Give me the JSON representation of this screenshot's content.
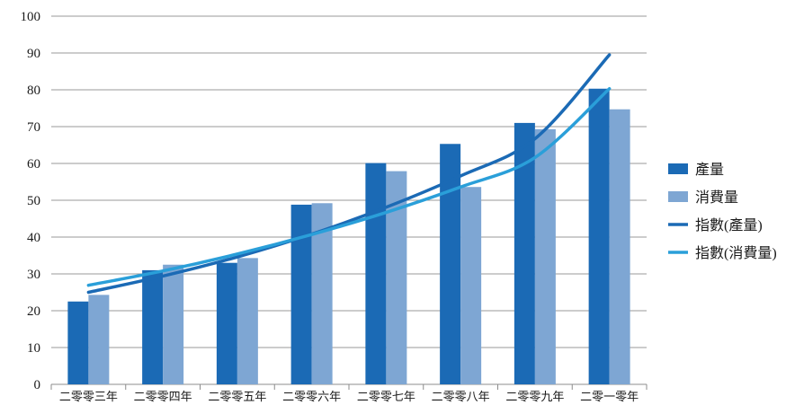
{
  "chart_data": {
    "type": "bar",
    "categories": [
      "二零零三年",
      "二零零四年",
      "二零零五年",
      "二零零六年",
      "二零零七年",
      "二零零八年",
      "二零零九年",
      "二零一零年"
    ],
    "series": [
      {
        "name": "產量",
        "kind": "bar",
        "color": "#1b6ab5",
        "values": [
          22.5,
          31.0,
          33.0,
          48.8,
          60.1,
          65.3,
          71.0,
          80.3
        ]
      },
      {
        "name": "消費量",
        "kind": "bar",
        "color": "#7ea6d3",
        "values": [
          24.3,
          32.5,
          34.3,
          49.2,
          57.9,
          53.6,
          69.3,
          74.7
        ]
      },
      {
        "name": "指數(產量)",
        "kind": "trendline",
        "trend": "exponential",
        "color": "#1b6ab5",
        "values": [
          25.0,
          29.4,
          34.6,
          40.8,
          48.1,
          56.6,
          66.7,
          89.5
        ]
      },
      {
        "name": "指數(消費量)",
        "kind": "trendline",
        "trend": "exponential",
        "color": "#2a9fd9",
        "values": [
          26.9,
          30.8,
          35.4,
          40.7,
          46.7,
          53.6,
          61.6,
          80.3
        ]
      }
    ],
    "ylim": [
      0,
      100
    ],
    "yticks": [
      0,
      10,
      20,
      30,
      40,
      50,
      60,
      70,
      80,
      90,
      100
    ],
    "grid": true,
    "legend_position": "right"
  }
}
